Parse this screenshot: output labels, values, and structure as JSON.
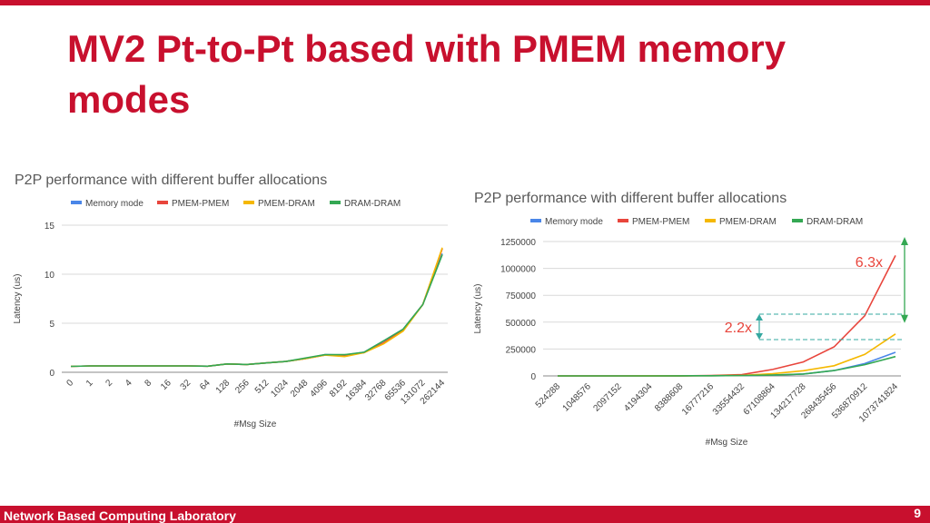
{
  "slide": {
    "title": "MV2 Pt-to-Pt based with PMEM memory modes",
    "footer": "Network Based Computing Laboratory",
    "page_number": "9",
    "accent_color": "#c8102e"
  },
  "chart_data": [
    {
      "type": "line",
      "title": "P2P performance with different buffer allocations",
      "xlabel": "#Msg Size",
      "ylabel": "Latency (us)",
      "ylim": [
        0,
        15
      ],
      "yticks": [
        "0",
        "5",
        "10",
        "15"
      ],
      "legend_position": "top",
      "grid": true,
      "categories": [
        "0",
        "1",
        "2",
        "4",
        "8",
        "16",
        "32",
        "64",
        "128",
        "256",
        "512",
        "1024",
        "2048",
        "4096",
        "8192",
        "16384",
        "32768",
        "65536",
        "131072",
        "262144"
      ],
      "series": [
        {
          "name": "Memory mode",
          "color": "#4a86e8",
          "values": [
            0.6,
            0.65,
            0.65,
            0.65,
            0.65,
            0.65,
            0.65,
            0.62,
            0.85,
            0.8,
            0.95,
            1.1,
            1.4,
            1.8,
            1.75,
            2.05,
            3.2,
            4.4,
            6.9,
            12.1
          ]
        },
        {
          "name": "PMEM-PMEM",
          "color": "#e8453c",
          "values": [
            0.6,
            0.65,
            0.65,
            0.65,
            0.65,
            0.65,
            0.65,
            0.62,
            0.85,
            0.8,
            0.95,
            1.1,
            1.4,
            1.75,
            1.7,
            2.0,
            3.0,
            4.3,
            6.9,
            12.6
          ]
        },
        {
          "name": "PMEM-DRAM",
          "color": "#f5b800",
          "values": [
            0.6,
            0.65,
            0.65,
            0.65,
            0.65,
            0.65,
            0.65,
            0.62,
            0.85,
            0.8,
            0.95,
            1.1,
            1.4,
            1.75,
            1.6,
            2.0,
            2.9,
            4.2,
            6.9,
            12.7
          ]
        },
        {
          "name": "DRAM-DRAM",
          "color": "#34a853",
          "values": [
            0.6,
            0.65,
            0.65,
            0.65,
            0.65,
            0.65,
            0.65,
            0.62,
            0.85,
            0.8,
            0.95,
            1.1,
            1.45,
            1.8,
            1.8,
            2.05,
            3.2,
            4.4,
            6.9,
            12.0
          ]
        }
      ]
    },
    {
      "type": "line",
      "title": "P2P performance with different buffer allocations",
      "xlabel": "#Msg Size",
      "ylabel": "Latency (us)",
      "ylim": [
        0,
        1250000
      ],
      "yticks": [
        "0",
        "250000",
        "500000",
        "750000",
        "1000000",
        "1250000"
      ],
      "legend_position": "top",
      "grid": true,
      "categories": [
        "524288",
        "1048576",
        "2097152",
        "4194304",
        "8388608",
        "16777216",
        "33554432",
        "67108864",
        "134217728",
        "268435456",
        "536870912",
        "1073741824"
      ],
      "series": [
        {
          "name": "Memory mode",
          "color": "#4a86e8",
          "values": [
            50,
            100,
            200,
            400,
            800,
            1700,
            3500,
            8000,
            18000,
            50000,
            115000,
            220000
          ]
        },
        {
          "name": "PMEM-PMEM",
          "color": "#e8453c",
          "values": [
            60,
            120,
            250,
            550,
            1200,
            3000,
            12000,
            60000,
            130000,
            270000,
            560000,
            1120000
          ]
        },
        {
          "name": "PMEM-DRAM",
          "color": "#f5b800",
          "values": [
            55,
            110,
            220,
            450,
            900,
            2000,
            5000,
            20000,
            48000,
            95000,
            200000,
            390000
          ]
        },
        {
          "name": "DRAM-DRAM",
          "color": "#34a853",
          "values": [
            50,
            100,
            200,
            400,
            800,
            1700,
            3500,
            8000,
            18000,
            50000,
            105000,
            180000
          ]
        }
      ],
      "annotations": [
        {
          "text": "6.3x",
          "color": "#e8453c"
        },
        {
          "text": "2.2x",
          "color": "#e8453c"
        }
      ]
    }
  ]
}
